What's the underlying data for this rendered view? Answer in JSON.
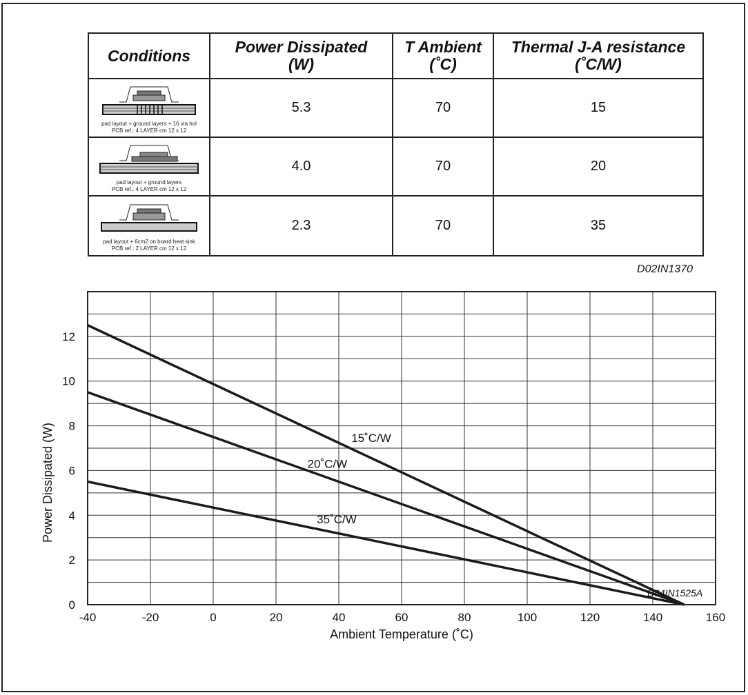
{
  "table": {
    "headers": [
      "Conditions",
      "Power Dissipated (W)",
      "T Ambient (˚C)",
      "Thermal J-A resistance (˚C/W)"
    ],
    "rows": [
      {
        "caption1": "pad layout + ground layers + 16 via hol",
        "caption2": "PCB ref.: 4 LAYER cm 12 x 12",
        "power": "5.3",
        "ambient": "70",
        "resistance": "15"
      },
      {
        "caption1": "pad layout + ground layers",
        "caption2": "PCB ref.: 4 LAYER cm 12 x 12",
        "power": "4.0",
        "ambient": "70",
        "resistance": "20"
      },
      {
        "caption1": "pad layout + 6cm2 on board heat sink",
        "caption2": "PCB ref.: 2 LAYER cm 12 x 12",
        "power": "2.3",
        "ambient": "70",
        "resistance": "35"
      }
    ],
    "reference": "D02IN1370"
  },
  "chart_reference": "D04IN1525A",
  "chart_data": {
    "type": "line",
    "xlabel": "Ambient Temperature (˚C)",
    "ylabel": "Power Dissipated (W)",
    "xlim": [
      -40,
      160
    ],
    "ylim": [
      0,
      14
    ],
    "xticks": [
      -40,
      -20,
      0,
      20,
      40,
      60,
      80,
      100,
      120,
      140,
      160
    ],
    "yticks": [
      0,
      2,
      4,
      6,
      8,
      10,
      12
    ],
    "grid": true,
    "series": [
      {
        "name": "15˚C/W",
        "x": [
          -40,
          150
        ],
        "y": [
          12.5,
          0
        ]
      },
      {
        "name": "20˚C/W",
        "x": [
          -40,
          150
        ],
        "y": [
          9.5,
          0
        ]
      },
      {
        "name": "35˚C/W",
        "x": [
          -40,
          150
        ],
        "y": [
          5.5,
          0
        ]
      }
    ]
  }
}
